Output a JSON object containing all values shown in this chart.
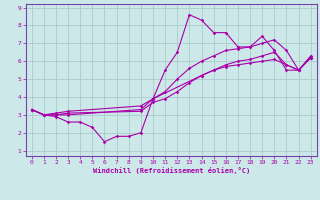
{
  "xlabel": "Windchill (Refroidissement éolien,°C)",
  "bg_color": "#cce8e8",
  "line_color": "#aa00aa",
  "grid_color": "#aacccc",
  "spine_color": "#7744aa",
  "xlim": [
    -0.5,
    23.5
  ],
  "ylim": [
    0.7,
    9.2
  ],
  "xticks": [
    0,
    1,
    2,
    3,
    4,
    5,
    6,
    7,
    8,
    9,
    10,
    11,
    12,
    13,
    14,
    15,
    16,
    17,
    18,
    19,
    20,
    21,
    22,
    23
  ],
  "yticks": [
    1,
    2,
    3,
    4,
    5,
    6,
    7,
    8,
    9
  ],
  "lines": [
    {
      "x": [
        0,
        1,
        2,
        3,
        4,
        5,
        6,
        7,
        8,
        9,
        10,
        11,
        12,
        13,
        14,
        15,
        16,
        17,
        18,
        19,
        20,
        21,
        22,
        23
      ],
      "y": [
        3.3,
        3.0,
        2.9,
        2.6,
        2.6,
        2.3,
        1.5,
        1.8,
        1.8,
        2.0,
        3.9,
        5.5,
        6.5,
        8.6,
        8.3,
        7.6,
        7.6,
        6.8,
        6.8,
        7.4,
        6.6,
        5.5,
        5.5,
        6.2
      ]
    },
    {
      "x": [
        0,
        1,
        2,
        3,
        9,
        10,
        11,
        12,
        13,
        14,
        15,
        16,
        17,
        18,
        19,
        20,
        21,
        22,
        23
      ],
      "y": [
        3.3,
        3.0,
        3.0,
        3.0,
        3.3,
        3.9,
        4.3,
        5.0,
        5.6,
        6.0,
        6.3,
        6.6,
        6.7,
        6.8,
        7.0,
        7.2,
        6.6,
        5.5,
        6.2
      ]
    },
    {
      "x": [
        0,
        1,
        2,
        3,
        9,
        10,
        11,
        12,
        13,
        14,
        15,
        16,
        17,
        18,
        19,
        20,
        21,
        22,
        23
      ],
      "y": [
        3.3,
        3.0,
        3.0,
        3.1,
        3.2,
        3.7,
        3.9,
        4.3,
        4.8,
        5.2,
        5.5,
        5.7,
        5.8,
        5.9,
        6.0,
        6.1,
        5.8,
        5.5,
        6.2
      ]
    },
    {
      "x": [
        0,
        1,
        2,
        3,
        9,
        10,
        14,
        15,
        16,
        17,
        18,
        19,
        20,
        21,
        22,
        23
      ],
      "y": [
        3.3,
        3.0,
        3.1,
        3.2,
        3.5,
        3.9,
        5.2,
        5.5,
        5.8,
        6.0,
        6.1,
        6.3,
        6.5,
        5.8,
        5.5,
        6.3
      ]
    }
  ]
}
